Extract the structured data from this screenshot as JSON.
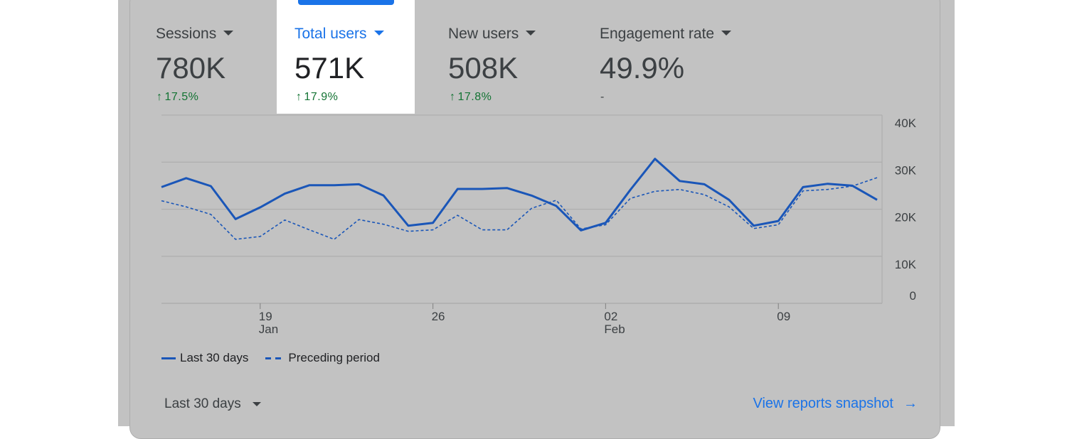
{
  "metrics": [
    {
      "label": "Sessions",
      "value": "780K",
      "change": "17.5%",
      "trend": "up"
    },
    {
      "label": "Total users",
      "value": "571K",
      "change": "17.9%",
      "trend": "up",
      "selected": true
    },
    {
      "label": "New users",
      "value": "508K",
      "change": "17.8%",
      "trend": "up"
    },
    {
      "label": "Engagement rate",
      "value": "49.9%",
      "change": "-",
      "trend": "none"
    }
  ],
  "chart_data": {
    "type": "line",
    "y_ticks": [
      "40K",
      "30K",
      "20K",
      "10K",
      "0"
    ],
    "ylim": [
      0,
      40000
    ],
    "x_ticks": [
      {
        "day": "19",
        "month": "Jan",
        "index": 4
      },
      {
        "day": "26",
        "month": "",
        "index": 11
      },
      {
        "day": "02",
        "month": "Feb",
        "index": 18
      },
      {
        "day": "09",
        "month": "",
        "index": 25
      }
    ],
    "series": [
      {
        "name": "Last 30 days",
        "style": "solid",
        "values": [
          24700,
          26600,
          24900,
          17900,
          20400,
          23300,
          25100,
          25100,
          25300,
          22900,
          16500,
          17100,
          24300,
          24300,
          24500,
          22900,
          20700,
          15500,
          17100,
          24100,
          30700,
          26000,
          25300,
          22000,
          16500,
          17500,
          24700,
          25400,
          25000,
          22000
        ]
      },
      {
        "name": "Preceding period",
        "style": "dashed",
        "values": [
          21800,
          20500,
          18900,
          13600,
          14200,
          17700,
          15600,
          13600,
          17800,
          16800,
          15300,
          15600,
          18700,
          15600,
          15600,
          20200,
          21900,
          15800,
          16700,
          22300,
          23800,
          24200,
          23100,
          20500,
          15900,
          16700,
          23900,
          24200,
          24900,
          26700
        ]
      }
    ]
  },
  "legend": {
    "current": "Last 30 days",
    "previous": "Preceding period"
  },
  "footer": {
    "range_label": "Last 30 days",
    "snapshot_link": "View reports snapshot",
    "arrow": "→"
  },
  "glyphs": {
    "arrow_up": "↑"
  },
  "colors": {
    "accent": "#1a73e8",
    "line": "#1a56b8",
    "positive": "#137333"
  }
}
